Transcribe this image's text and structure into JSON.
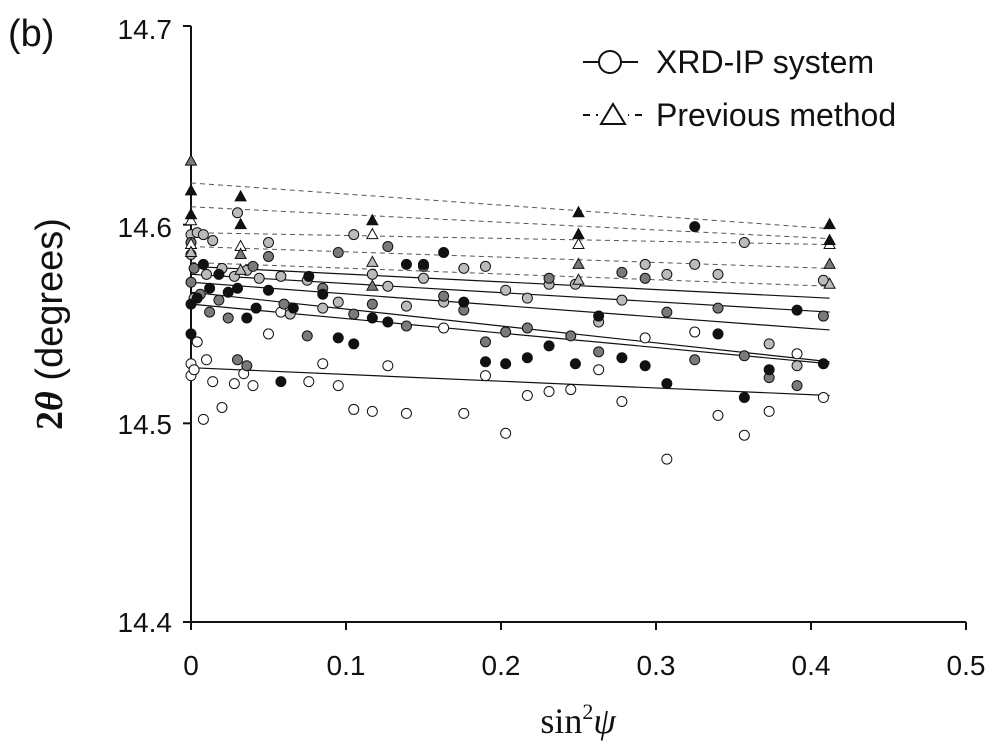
{
  "chart_data": {
    "type": "scatter",
    "panel_label": "(b)",
    "xlabel": {
      "main": "sin",
      "sup": "2",
      "var": "ψ"
    },
    "ylabel": {
      "prefix": "2",
      "var": "θ",
      "suffix": " (degrees)"
    },
    "xlim": [
      0,
      0.5
    ],
    "ylim": [
      14.4,
      14.7
    ],
    "xticks": [
      "0",
      "0.1",
      "0.2",
      "0.3",
      "0.4",
      "0.5"
    ],
    "yticks": [
      "14.4",
      "14.5",
      "14.6",
      "14.7"
    ],
    "grid": false,
    "legend_position": "top-right",
    "legend": [
      {
        "label": "XRD-IP system",
        "line": "solid",
        "marker": "circle-open"
      },
      {
        "label": "Previous method",
        "line": "dashed",
        "marker": "triangle-open"
      }
    ],
    "colors": {
      "white": "#ffffff",
      "lightgray": "#bbbbbb",
      "gray": "#7a7a7a",
      "black": "#111111"
    },
    "xrd_fit_lines": [
      {
        "y0": 14.579,
        "y1": 14.563
      },
      {
        "y0": 14.575,
        "y1": 14.556
      },
      {
        "y0": 14.571,
        "y1": 14.547
      },
      {
        "y0": 14.566,
        "y1": 14.531
      },
      {
        "y0": 14.56,
        "y1": 14.53
      },
      {
        "y0": 14.528,
        "y1": 14.514
      }
    ],
    "xrd_fit_x": [
      0,
      0.412
    ],
    "previous_fit_lines": [
      {
        "y0": 14.621,
        "y1": 14.598
      },
      {
        "y0": 14.609,
        "y1": 14.593
      },
      {
        "y0": 14.596,
        "y1": 14.59
      },
      {
        "y0": 14.589,
        "y1": 14.578
      },
      {
        "y0": 14.581,
        "y1": 14.569
      }
    ],
    "previous_fit_x": [
      0,
      0.412
    ],
    "xrd_points": [
      {
        "fill": "white",
        "points": [
          [
            0,
            14.53
          ],
          [
            0,
            14.524
          ],
          [
            0.002,
            14.527
          ],
          [
            0.004,
            14.541
          ],
          [
            0.008,
            14.502
          ],
          [
            0.01,
            14.532
          ],
          [
            0.014,
            14.521
          ],
          [
            0.02,
            14.508
          ],
          [
            0.028,
            14.52
          ],
          [
            0.034,
            14.525
          ],
          [
            0.04,
            14.519
          ],
          [
            0.05,
            14.545
          ],
          [
            0.058,
            14.556
          ],
          [
            0.076,
            14.521
          ],
          [
            0.085,
            14.53
          ],
          [
            0.095,
            14.519
          ],
          [
            0.105,
            14.507
          ],
          [
            0.117,
            14.506
          ],
          [
            0.127,
            14.529
          ],
          [
            0.139,
            14.505
          ],
          [
            0.163,
            14.548
          ],
          [
            0.176,
            14.505
          ],
          [
            0.19,
            14.524
          ],
          [
            0.203,
            14.495
          ],
          [
            0.217,
            14.514
          ],
          [
            0.231,
            14.516
          ],
          [
            0.245,
            14.517
          ],
          [
            0.263,
            14.527
          ],
          [
            0.278,
            14.511
          ],
          [
            0.293,
            14.543
          ],
          [
            0.307,
            14.482
          ],
          [
            0.325,
            14.546
          ],
          [
            0.34,
            14.504
          ],
          [
            0.357,
            14.494
          ],
          [
            0.373,
            14.506
          ],
          [
            0.391,
            14.535
          ],
          [
            0.408,
            14.513
          ]
        ]
      },
      {
        "fill": "lightgray",
        "points": [
          [
            0,
            14.595
          ],
          [
            0,
            14.585
          ],
          [
            0.002,
            14.563
          ],
          [
            0.004,
            14.596
          ],
          [
            0.008,
            14.595
          ],
          [
            0.01,
            14.575
          ],
          [
            0.014,
            14.592
          ],
          [
            0.02,
            14.578
          ],
          [
            0.028,
            14.574
          ],
          [
            0.03,
            14.606
          ],
          [
            0.036,
            14.577
          ],
          [
            0.044,
            14.573
          ],
          [
            0.05,
            14.591
          ],
          [
            0.058,
            14.574
          ],
          [
            0.064,
            14.555
          ],
          [
            0.075,
            14.572
          ],
          [
            0.085,
            14.558
          ],
          [
            0.095,
            14.561
          ],
          [
            0.105,
            14.595
          ],
          [
            0.117,
            14.575
          ],
          [
            0.127,
            14.569
          ],
          [
            0.139,
            14.559
          ],
          [
            0.15,
            14.573
          ],
          [
            0.163,
            14.561
          ],
          [
            0.176,
            14.578
          ],
          [
            0.19,
            14.579
          ],
          [
            0.203,
            14.567
          ],
          [
            0.217,
            14.563
          ],
          [
            0.231,
            14.57
          ],
          [
            0.248,
            14.57
          ],
          [
            0.263,
            14.551
          ],
          [
            0.278,
            14.562
          ],
          [
            0.293,
            14.58
          ],
          [
            0.307,
            14.575
          ],
          [
            0.325,
            14.58
          ],
          [
            0.34,
            14.575
          ],
          [
            0.357,
            14.591
          ],
          [
            0.373,
            14.54
          ],
          [
            0.391,
            14.529
          ],
          [
            0.408,
            14.572
          ]
        ]
      },
      {
        "fill": "gray",
        "points": [
          [
            0,
            14.591
          ],
          [
            0,
            14.571
          ],
          [
            0.002,
            14.578
          ],
          [
            0.006,
            14.565
          ],
          [
            0.012,
            14.556
          ],
          [
            0.018,
            14.562
          ],
          [
            0.024,
            14.553
          ],
          [
            0.03,
            14.532
          ],
          [
            0.036,
            14.529
          ],
          [
            0.04,
            14.579
          ],
          [
            0.05,
            14.584
          ],
          [
            0.06,
            14.56
          ],
          [
            0.075,
            14.544
          ],
          [
            0.085,
            14.568
          ],
          [
            0.095,
            14.586
          ],
          [
            0.105,
            14.555
          ],
          [
            0.117,
            14.56
          ],
          [
            0.127,
            14.589
          ],
          [
            0.139,
            14.549
          ],
          [
            0.15,
            14.579
          ],
          [
            0.163,
            14.564
          ],
          [
            0.176,
            14.557
          ],
          [
            0.19,
            14.541
          ],
          [
            0.203,
            14.546
          ],
          [
            0.217,
            14.548
          ],
          [
            0.231,
            14.573
          ],
          [
            0.245,
            14.544
          ],
          [
            0.263,
            14.536
          ],
          [
            0.278,
            14.576
          ],
          [
            0.293,
            14.573
          ],
          [
            0.307,
            14.556
          ],
          [
            0.325,
            14.532
          ],
          [
            0.34,
            14.558
          ],
          [
            0.357,
            14.534
          ],
          [
            0.373,
            14.523
          ],
          [
            0.391,
            14.519
          ],
          [
            0.408,
            14.554
          ]
        ]
      },
      {
        "fill": "black",
        "points": [
          [
            0,
            14.545
          ],
          [
            0,
            14.56
          ],
          [
            0.004,
            14.563
          ],
          [
            0.008,
            14.58
          ],
          [
            0.012,
            14.568
          ],
          [
            0.018,
            14.575
          ],
          [
            0.024,
            14.566
          ],
          [
            0.03,
            14.568
          ],
          [
            0.036,
            14.553
          ],
          [
            0.042,
            14.558
          ],
          [
            0.05,
            14.567
          ],
          [
            0.058,
            14.521
          ],
          [
            0.066,
            14.558
          ],
          [
            0.076,
            14.574
          ],
          [
            0.085,
            14.565
          ],
          [
            0.095,
            14.543
          ],
          [
            0.105,
            14.54
          ],
          [
            0.117,
            14.553
          ],
          [
            0.127,
            14.551
          ],
          [
            0.139,
            14.58
          ],
          [
            0.15,
            14.58
          ],
          [
            0.163,
            14.586
          ],
          [
            0.176,
            14.561
          ],
          [
            0.19,
            14.531
          ],
          [
            0.203,
            14.53
          ],
          [
            0.217,
            14.533
          ],
          [
            0.231,
            14.539
          ],
          [
            0.248,
            14.53
          ],
          [
            0.263,
            14.554
          ],
          [
            0.278,
            14.533
          ],
          [
            0.293,
            14.529
          ],
          [
            0.307,
            14.52
          ],
          [
            0.325,
            14.599
          ],
          [
            0.34,
            14.545
          ],
          [
            0.357,
            14.513
          ],
          [
            0.373,
            14.527
          ],
          [
            0.391,
            14.557
          ],
          [
            0.408,
            14.53
          ]
        ]
      }
    ],
    "previous_points": [
      {
        "fill": "white",
        "points": [
          [
            0,
            14.602
          ],
          [
            0,
            14.59
          ],
          [
            0.032,
            14.589
          ],
          [
            0.117,
            14.595
          ],
          [
            0.25,
            14.59
          ],
          [
            0.412,
            14.59
          ]
        ]
      },
      {
        "fill": "lightgray",
        "points": [
          [
            0,
            14.586
          ],
          [
            0.032,
            14.577
          ],
          [
            0.117,
            14.581
          ],
          [
            0.25,
            14.572
          ],
          [
            0.412,
            14.57
          ]
        ]
      },
      {
        "fill": "gray",
        "points": [
          [
            0,
            14.632
          ],
          [
            0.032,
            14.585
          ],
          [
            0.117,
            14.569
          ],
          [
            0.25,
            14.58
          ],
          [
            0.412,
            14.58
          ]
        ]
      },
      {
        "fill": "black",
        "points": [
          [
            0,
            14.617
          ],
          [
            0,
            14.605
          ],
          [
            0.032,
            14.614
          ],
          [
            0.032,
            14.6
          ],
          [
            0.117,
            14.602
          ],
          [
            0.25,
            14.606
          ],
          [
            0.25,
            14.595
          ],
          [
            0.412,
            14.6
          ],
          [
            0.412,
            14.592
          ]
        ]
      }
    ]
  }
}
